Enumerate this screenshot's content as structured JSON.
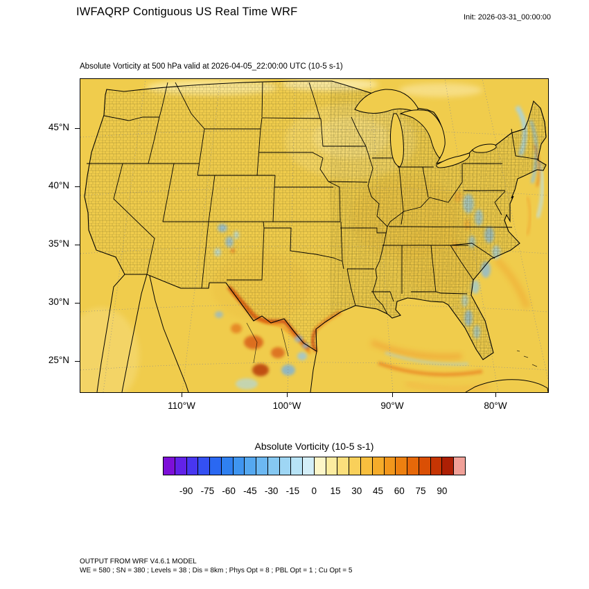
{
  "header": {
    "title": "IWFAQRP Contiguous US Real Time WRF",
    "init_label": "Init: 2026-03-31_00:00:00"
  },
  "map": {
    "subtitle": "Absolute Vorticity at 500 hPa valid at 2026-04-05_22:00:00 UTC   (10-5 s-1)",
    "lat_labels": [
      "45°N",
      "40°N",
      "35°N",
      "30°N",
      "25°N"
    ],
    "lon_labels": [
      "110°W",
      "100°W",
      "90°W",
      "80°W"
    ]
  },
  "colorbar": {
    "title": "Absolute Vorticity  (10-5 s-1)",
    "tick_labels": [
      "-90",
      "-75",
      "-60",
      "-45",
      "-30",
      "-15",
      "0",
      "15",
      "30",
      "45",
      "60",
      "75",
      "90"
    ],
    "colors": [
      "#7d0fd8",
      "#6222e8",
      "#4836f0",
      "#3450f2",
      "#2a68f2",
      "#2f80f0",
      "#3f95f0",
      "#55a8f0",
      "#6cb8f2",
      "#85c8f2",
      "#9ed6f4",
      "#b7e3f6",
      "#d3eef8",
      "#fdf6c8",
      "#fceca0",
      "#fbdf7c",
      "#f9d05a",
      "#f8bf3e",
      "#f5ac2a",
      "#f2971c",
      "#ed8010",
      "#e66809",
      "#da4f05",
      "#c63503",
      "#ad1f04",
      "#f0a098"
    ]
  },
  "footer": {
    "line1": "OUTPUT FROM WRF V4.6.1 MODEL",
    "line2": "WE = 580 ; SN = 380 ; Levels = 38 ; Dis = 8km ; Phys Opt = 8 ; PBL Opt = 1 ; Cu Opt = 5"
  },
  "chart_data": {
    "type": "heatmap",
    "title": "Absolute Vorticity at 500 hPa valid at 2026-04-05_22:00:00 UTC (10-5 s-1)",
    "variable": "Absolute Vorticity",
    "units": "10-5 s-1",
    "level": "500 hPa",
    "init_time": "2026-03-31_00:00:00",
    "valid_time": "2026-04-05_22:00:00 UTC",
    "x_tick_labels": [
      "110°W",
      "100°W",
      "90°W",
      "80°W"
    ],
    "y_tick_labels": [
      "45°N",
      "40°N",
      "35°N",
      "30°N",
      "25°N"
    ],
    "colorbar_tick_values": [
      -90,
      -75,
      -60,
      -45,
      -30,
      -15,
      0,
      15,
      30,
      45,
      60,
      75,
      90
    ],
    "colorbar_tick_step": 15,
    "legend_position": "bottom"
  }
}
